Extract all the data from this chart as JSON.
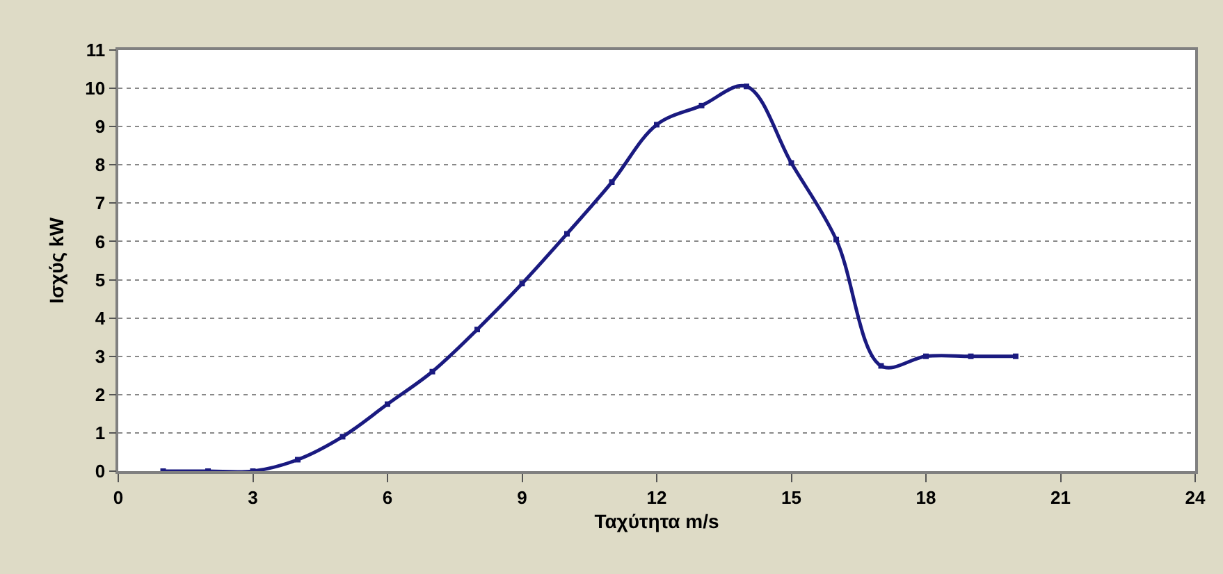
{
  "chart_data": {
    "type": "line",
    "xlabel": "Ταχύτητα m/s",
    "ylabel": "Ισχύς kW",
    "x": [
      1,
      2,
      3,
      4,
      5,
      6,
      7,
      8,
      9,
      10,
      11,
      12,
      13,
      14,
      15,
      16,
      17,
      18,
      19,
      20
    ],
    "series": [
      {
        "color": "#1a1a80",
        "values": [
          0,
          0,
          0,
          0.3,
          0.9,
          1.75,
          2.6,
          3.7,
          4.9,
          6.2,
          7.55,
          9.05,
          9.55,
          10.05,
          8.05,
          6.05,
          2.75,
          3,
          3,
          3
        ]
      }
    ],
    "xlim": [
      0,
      24
    ],
    "xticks": [
      0,
      3,
      6,
      9,
      12,
      15,
      18,
      21,
      24
    ],
    "ylim": [
      0,
      11
    ],
    "yticks": [
      0,
      1,
      2,
      3,
      4,
      5,
      6,
      7,
      8,
      9,
      10,
      11
    ],
    "grid": "y",
    "marker": "square",
    "line_style": "solid"
  }
}
